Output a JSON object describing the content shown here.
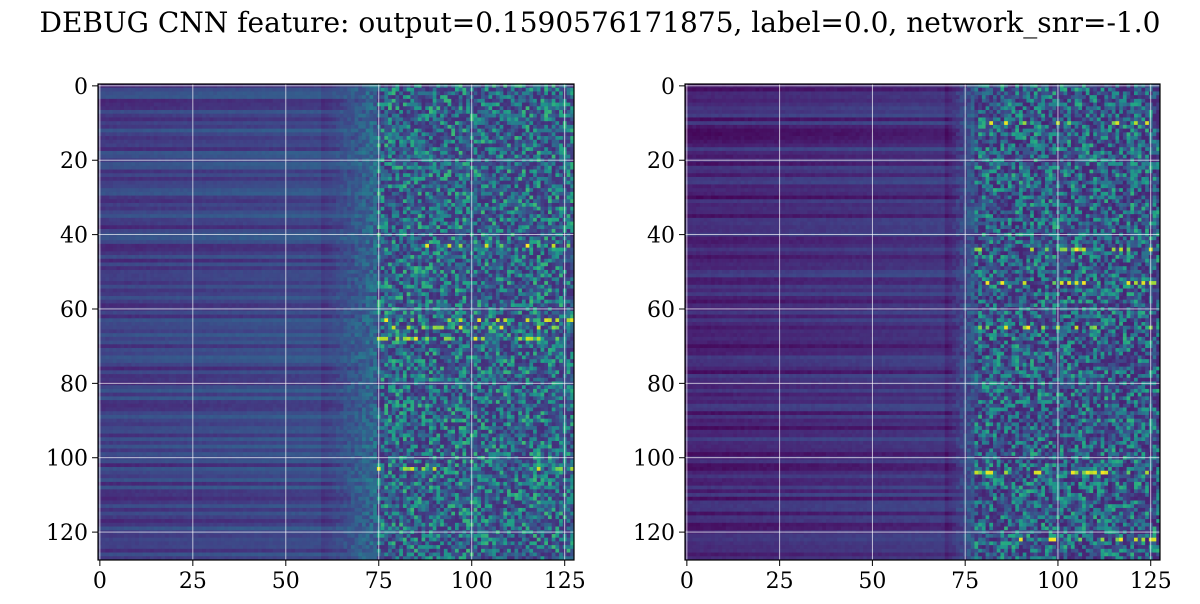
{
  "figure": {
    "suptitle": "DEBUG CNN feature: output=0.1590576171875, label=0.0, network_snr=-1.0"
  },
  "chart_data": [
    {
      "type": "heatmap",
      "title": "",
      "xlabel": "",
      "ylabel": "",
      "grid": true,
      "colormap": "viridis",
      "shape": [
        128,
        128
      ],
      "xlim": [
        -0.5,
        127.5
      ],
      "ylim": [
        127.5,
        -0.5
      ],
      "x_ticks": [
        0,
        25,
        50,
        75,
        100,
        125
      ],
      "y_ticks": [
        0,
        20,
        40,
        60,
        80,
        100,
        120
      ],
      "description_of_values": {
        "low_band_cols": [
          0,
          60
        ],
        "low_band_level": 0.18,
        "transition_cols": [
          60,
          75
        ],
        "high_noise_cols": [
          75,
          127
        ],
        "high_noise_level": 0.35,
        "hotspot_rows": [
          43,
          63,
          65,
          68,
          103
        ]
      }
    },
    {
      "type": "heatmap",
      "title": "",
      "xlabel": "",
      "ylabel": "",
      "grid": true,
      "colormap": "viridis",
      "shape": [
        128,
        128
      ],
      "xlim": [
        -0.5,
        127.5
      ],
      "ylim": [
        127.5,
        -0.5
      ],
      "x_ticks": [
        0,
        25,
        50,
        75,
        100,
        125
      ],
      "y_ticks": [
        0,
        20,
        40,
        60,
        80,
        100,
        120
      ],
      "description_of_values": {
        "low_band_cols": [
          0,
          70
        ],
        "low_band_level": 0.1,
        "transition_cols": [
          70,
          78
        ],
        "high_noise_cols": [
          78,
          127
        ],
        "high_noise_level": 0.3,
        "hotspot_rows": [
          10,
          44,
          53,
          65,
          104,
          122
        ]
      }
    }
  ],
  "colors": {
    "grid": "#ffffff",
    "axis": "#000000"
  }
}
